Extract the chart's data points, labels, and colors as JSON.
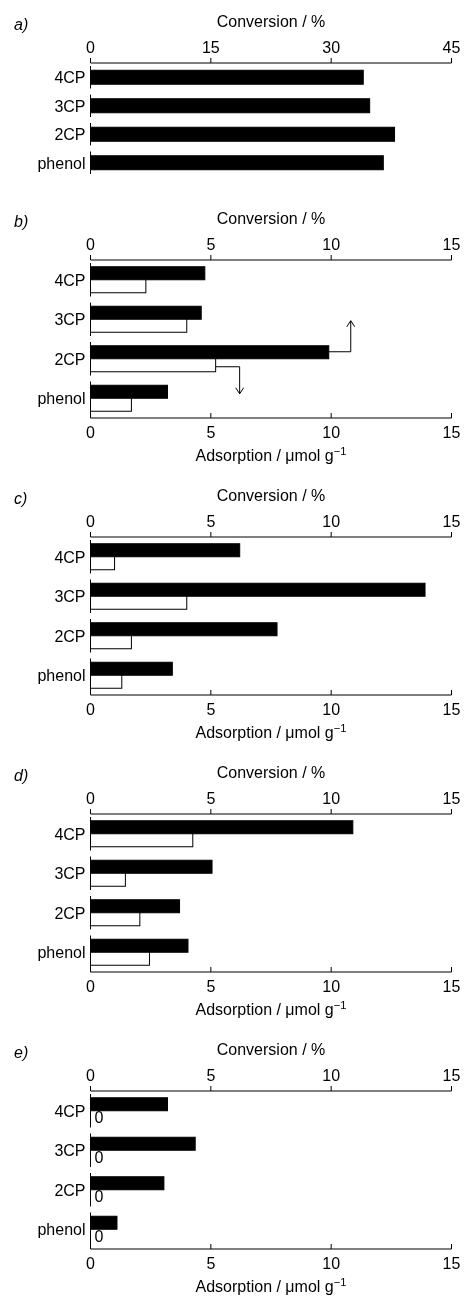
{
  "chart_data": [
    {
      "type": "bar",
      "orientation": "horizontal",
      "title": "a)",
      "x2label": "Conversion / %",
      "categories": [
        "4CP",
        "3CP",
        "2CP",
        "phenol"
      ],
      "x2lim": [
        0,
        45
      ],
      "x2ticks": [
        0,
        15,
        30,
        45
      ],
      "series": [
        {
          "color": "#000000",
          "axis": "x2",
          "values": [
            34.0,
            34.8,
            37.9,
            36.5
          ]
        }
      ]
    },
    {
      "type": "bar",
      "orientation": "horizontal",
      "title": "b)",
      "x2label": "Conversion / %",
      "xlabel": "Adsorption / μmol g$^{−1}$",
      "categories": [
        "4CP",
        "3CP",
        "2CP",
        "phenol"
      ],
      "x2lim": [
        0,
        15
      ],
      "x2ticks": [
        0,
        5,
        10,
        15
      ],
      "xlim": [
        0,
        15
      ],
      "xticks": [
        0,
        5,
        10,
        15
      ],
      "series": [
        {
          "color": "#000000",
          "axis": "x2",
          "values": [
            4.75,
            4.6,
            9.9,
            3.2
          ]
        },
        {
          "color": "#ffffff",
          "values": [
            2.3,
            4.0,
            5.2,
            1.7
          ]
        }
      ]
    },
    {
      "type": "bar",
      "orientation": "horizontal",
      "title": "c)",
      "x2label": "Conversion / %",
      "xlabel": "Adsorption / μmol g$^{−1}$",
      "categories": [
        "4CP",
        "3CP",
        "2CP",
        "phenol"
      ],
      "x2lim": [
        0,
        15
      ],
      "x2ticks": [
        0,
        5,
        10,
        15
      ],
      "xlim": [
        0,
        15
      ],
      "xticks": [
        0,
        5,
        10,
        15
      ],
      "series": [
        {
          "color": "#000000",
          "axis": "x2",
          "values": [
            6.2,
            13.9,
            7.75,
            3.4
          ]
        },
        {
          "color": "#ffffff",
          "values": [
            1.0,
            4.0,
            1.7,
            1.3
          ]
        }
      ]
    },
    {
      "type": "bar",
      "orientation": "horizontal",
      "title": "d)",
      "x2label": "Conversion / %",
      "xlabel": "Adsorption / μmol g$^{−1}$",
      "categories": [
        "4CP",
        "3CP",
        "2CP",
        "phenol"
      ],
      "x2lim": [
        0,
        15
      ],
      "x2ticks": [
        0,
        5,
        10,
        15
      ],
      "xlim": [
        0,
        15
      ],
      "xticks": [
        0,
        5,
        10,
        15
      ],
      "series": [
        {
          "color": "#000000",
          "axis": "x2",
          "values": [
            10.9,
            5.05,
            3.7,
            4.05
          ]
        },
        {
          "color": "#ffffff",
          "values": [
            4.25,
            1.45,
            2.05,
            2.45
          ]
        }
      ]
    },
    {
      "type": "bar",
      "orientation": "horizontal",
      "title": "e)",
      "x2label": "Conversion / %",
      "xlabel": "Adsorption / μmol g$^{−1}$",
      "categories": [
        "4CP",
        "3CP",
        "2CP",
        "phenol"
      ],
      "x2lim": [
        0,
        15
      ],
      "x2ticks": [
        0,
        5,
        10,
        15
      ],
      "xlim": [
        0,
        15
      ],
      "xticks": [
        0,
        5,
        10,
        15
      ],
      "series": [
        {
          "color": "#000000",
          "axis": "x2",
          "values": [
            3.2,
            4.35,
            3.05,
            1.1
          ]
        },
        {
          "color": "#ffffff",
          "values": [
            0,
            0,
            0,
            0
          ],
          "value_labels": [
            "0",
            "0",
            "0",
            "0"
          ]
        }
      ]
    }
  ]
}
